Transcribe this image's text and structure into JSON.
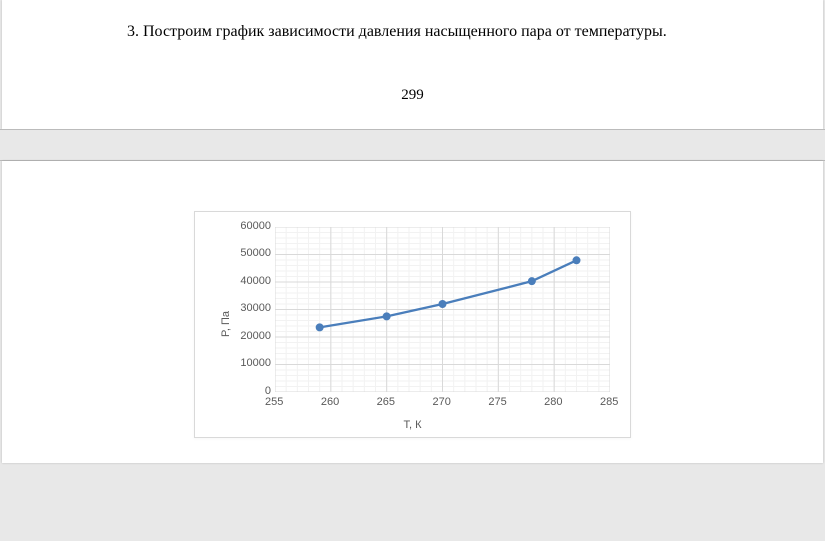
{
  "doc": {
    "paragraph": "3. Построим график зависимости давления насыщенного пара от температуры.",
    "page_number": "299"
  },
  "chart": {
    "type": "line",
    "xlabel": "Т, К",
    "ylabel": "P, Па",
    "label_fontsize": 11,
    "tick_fontsize": 11,
    "background_color": "#ffffff",
    "border_color": "#d9d9d9",
    "grid_major_color": "#d9d9d9",
    "grid_minor_color": "#f2f2f2",
    "axis_text_color": "#595959",
    "line_color": "#4a7ebb",
    "line_width": 2.3,
    "marker_color": "#4a7ebb",
    "marker_radius": 4,
    "xlim": [
      255,
      285
    ],
    "xtick_step": 5,
    "x_minor_step": 1,
    "ylim": [
      0,
      60000
    ],
    "ytick_step": 10000,
    "y_minor_step": 2000,
    "x": [
      259,
      265,
      270,
      278,
      282
    ],
    "y": [
      23500,
      27500,
      32000,
      40300,
      47900
    ]
  }
}
